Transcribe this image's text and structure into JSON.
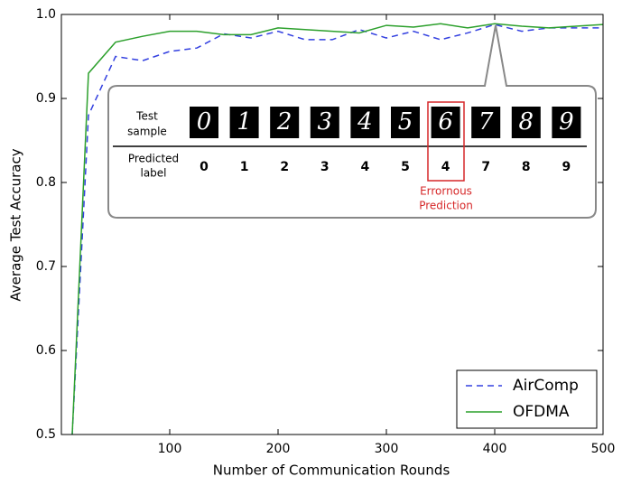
{
  "chart_data": {
    "type": "line",
    "xlabel": "Number of Communication Rounds",
    "ylabel": "Average Test Accuracy",
    "xlim": [
      0,
      500
    ],
    "xticks": [
      100,
      200,
      300,
      400,
      500
    ],
    "ylim": [
      0.5,
      1.0
    ],
    "yticks": [
      0.5,
      0.6,
      0.7,
      0.8,
      0.9,
      {
        "value": 1.0,
        "label": "1.0"
      }
    ],
    "legend": "lower right",
    "x": [
      10,
      25,
      50,
      75,
      100,
      125,
      150,
      175,
      200,
      225,
      250,
      275,
      300,
      325,
      350,
      375,
      400,
      425,
      450,
      475,
      500
    ],
    "series": [
      {
        "name": "AirComp",
        "color": "#3340e0",
        "dashed": true,
        "values": [
          0.5,
          0.88,
          0.95,
          0.945,
          0.956,
          0.96,
          0.977,
          0.972,
          0.98,
          0.97,
          0.97,
          0.982,
          0.972,
          0.98,
          0.97,
          0.978,
          0.988,
          0.98,
          0.984,
          0.984,
          0.984
        ]
      },
      {
        "name": "OFDMA",
        "color": "#2ca02c",
        "dashed": false,
        "values": [
          0.5,
          0.93,
          0.967,
          0.974,
          0.98,
          0.98,
          0.976,
          0.976,
          0.984,
          0.982,
          0.98,
          0.978,
          0.987,
          0.985,
          0.989,
          0.984,
          0.989,
          0.986,
          0.984,
          0.986,
          0.988
        ]
      }
    ],
    "inset": {
      "row1_label": [
        "Test",
        "sample"
      ],
      "row2_label": [
        "Predicted",
        "label"
      ],
      "samples": [
        "0",
        "1",
        "2",
        "3",
        "4",
        "5",
        "6",
        "7",
        "8",
        "9"
      ],
      "predicted": [
        "0",
        "1",
        "2",
        "3",
        "4",
        "5",
        "4",
        "7",
        "8",
        "9"
      ],
      "error_note": [
        "Errornous",
        "Prediction"
      ]
    }
  }
}
